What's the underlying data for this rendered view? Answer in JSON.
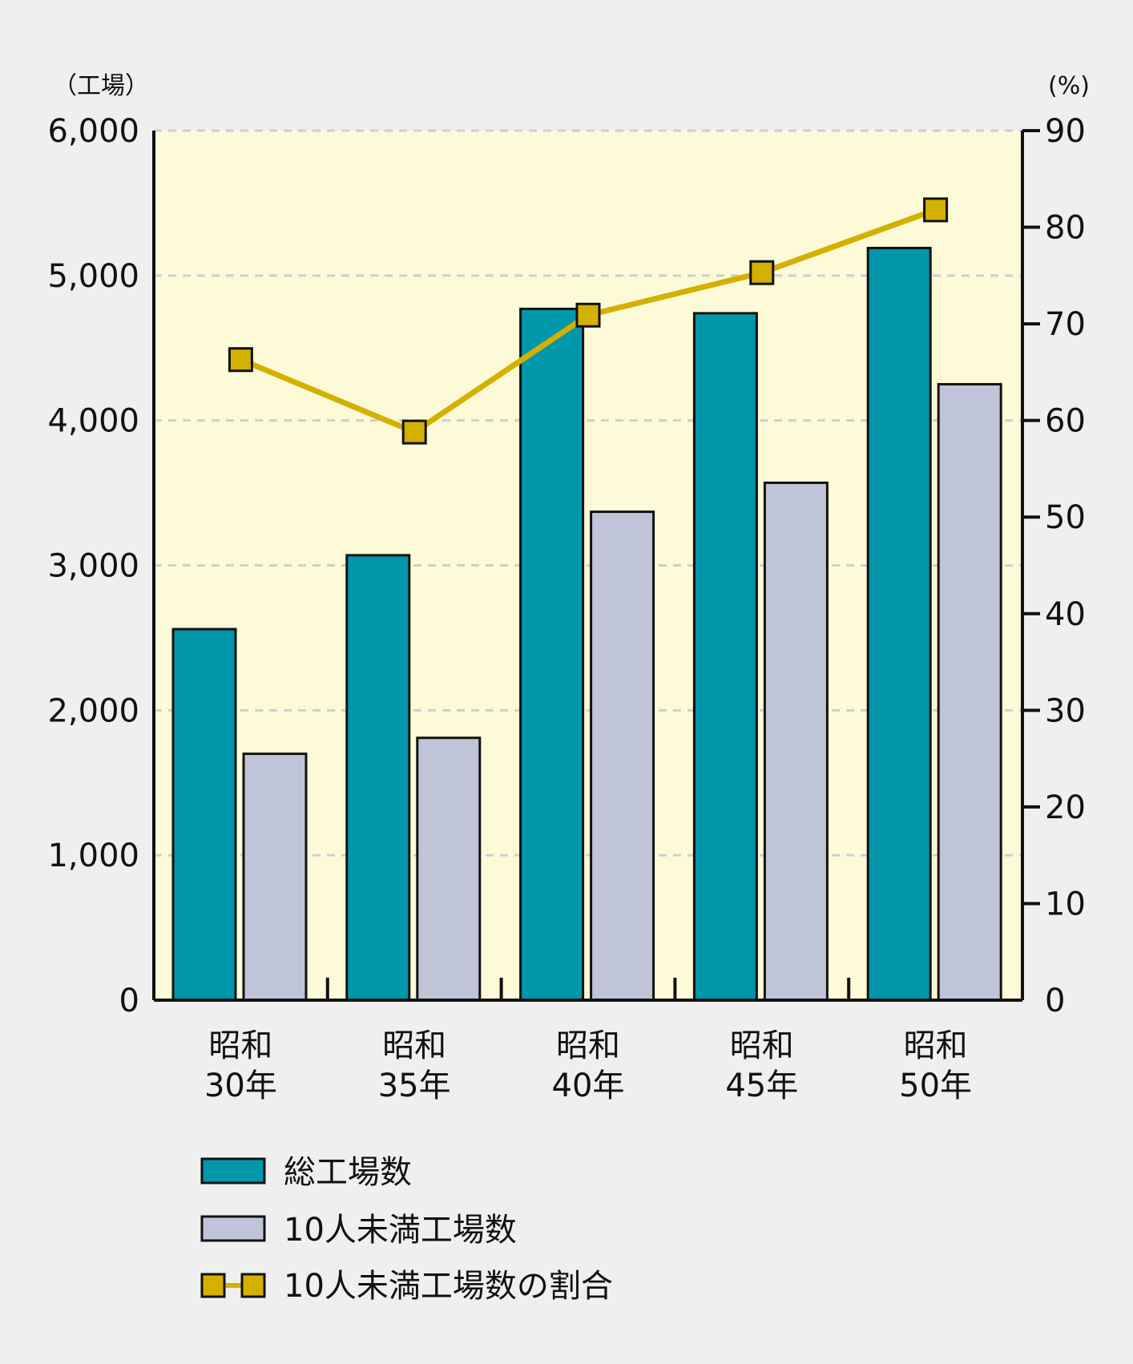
{
  "chart_data": {
    "type": "bar",
    "categories": [
      [
        "昭和",
        "30年"
      ],
      [
        "昭和",
        "35年"
      ],
      [
        "昭和",
        "40年"
      ],
      [
        "昭和",
        "45年"
      ],
      [
        "昭和",
        "50年"
      ]
    ],
    "series": [
      {
        "name": "総工場数",
        "type": "bar",
        "axis": "left",
        "color": "#0097ab",
        "values": [
          2560,
          3070,
          4770,
          4740,
          5190
        ]
      },
      {
        "name": "10人未満工場数",
        "type": "bar",
        "axis": "left",
        "color": "#c0c4d8",
        "values": [
          1700,
          1810,
          3370,
          3570,
          4250
        ]
      },
      {
        "name": "10人未満工場数の割合",
        "type": "line",
        "axis": "right",
        "color": "#d4b000",
        "values": [
          66.3,
          58.8,
          70.9,
          75.3,
          81.8
        ]
      }
    ],
    "left_axis": {
      "unit": "（工場）",
      "min": 0,
      "max": 6000,
      "ticks": [
        "0",
        "1,000",
        "2,000",
        "3,000",
        "4,000",
        "5,000",
        "6,000"
      ]
    },
    "right_axis": {
      "unit": "(%)",
      "min": 0,
      "max": 90,
      "ticks": [
        "0",
        "10",
        "20",
        "30",
        "40",
        "50",
        "60",
        "70",
        "80",
        "90"
      ]
    },
    "grid": true,
    "legend_position": "bottom-left",
    "plot_background": "#fdfad8"
  }
}
